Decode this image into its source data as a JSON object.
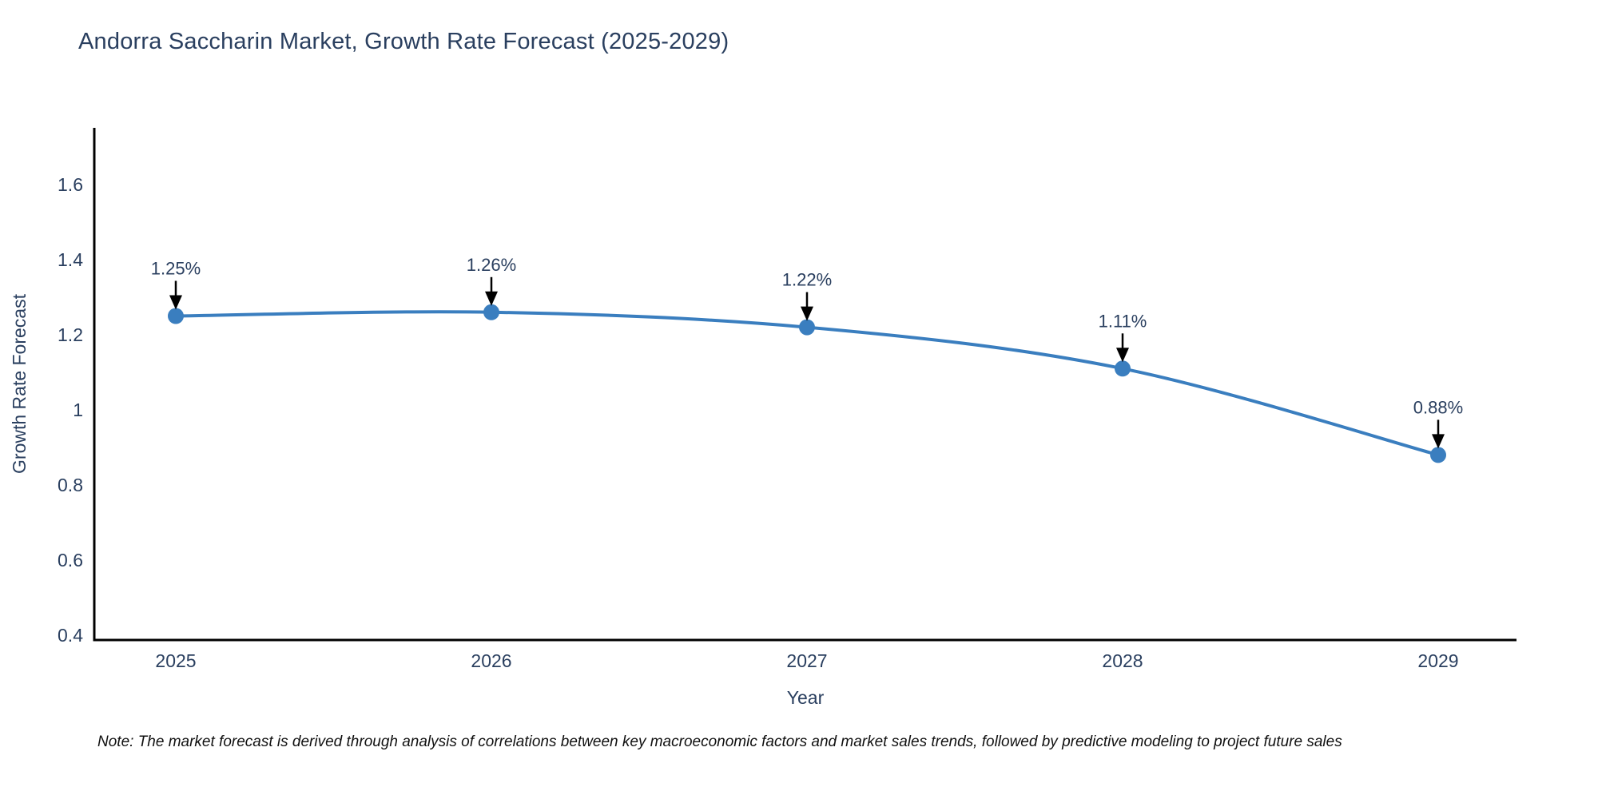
{
  "title": "Andorra Saccharin Market, Growth Rate Forecast (2025-2029)",
  "footnote": {
    "text": "Note: The market forecast is derived through analysis of correlations between key macroeconomic factors and market sales trends, followed by predictive modeling to project future sales"
  },
  "chart_data": {
    "type": "line",
    "title": "Andorra Saccharin Market, Growth Rate Forecast (2025-2029)",
    "categories": [
      "2025",
      "2026",
      "2027",
      "2028",
      "2029"
    ],
    "values": [
      1.25,
      1.26,
      1.22,
      1.11,
      0.88
    ],
    "point_labels": [
      "1.25%",
      "1.26%",
      "1.22%",
      "1.11%",
      "0.88%"
    ],
    "xlabel": "Year",
    "ylabel": "Growth Rate Forecast",
    "ytick_labels": [
      "0.4",
      "0.6",
      "0.8",
      "1",
      "1.2",
      "1.4",
      "1.6"
    ],
    "ytick_values": [
      0.4,
      0.6,
      0.8,
      1.0,
      1.2,
      1.4,
      1.6
    ],
    "ylim": [
      0.39,
      1.75
    ],
    "line_shape": "spline",
    "grid": false,
    "legend": "none",
    "annotations_arrow": "down-black",
    "colors": {
      "line": "#3a7ebf",
      "marker": "#3a7ebf",
      "arrow": "#000000",
      "text": "#2a3f5f",
      "axis_line": "#000000",
      "note_text": "#111111",
      "background": "#ffffff"
    }
  }
}
